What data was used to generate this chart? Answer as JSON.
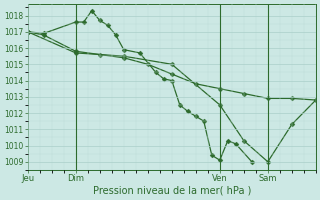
{
  "bg_color": "#cce8e4",
  "grid_major_color": "#aacfca",
  "grid_minor_color": "#bbdbd7",
  "line_color": "#2d6b2d",
  "xlabel": "Pression niveau de la mer( hPa )",
  "ylim": [
    1008.5,
    1018.7
  ],
  "yticks": [
    1009,
    1010,
    1011,
    1012,
    1013,
    1014,
    1015,
    1016,
    1017,
    1018
  ],
  "xlim": [
    0,
    72
  ],
  "xtick_positions": [
    0,
    12,
    48,
    60
  ],
  "xtick_labels": [
    "Jeu",
    "Dim",
    "Ven",
    "Sam"
  ],
  "vline_positions": [
    12,
    48,
    60
  ],
  "series1_x": [
    0,
    4,
    12,
    14,
    16,
    18,
    20,
    22,
    24,
    28,
    32,
    34,
    36,
    38,
    40,
    42,
    44,
    46,
    48,
    50,
    52,
    56
  ],
  "series1_y": [
    1017.0,
    1016.9,
    1017.6,
    1017.6,
    1018.3,
    1017.7,
    1017.4,
    1016.8,
    1015.9,
    1015.7,
    1014.5,
    1014.1,
    1014.0,
    1012.5,
    1012.1,
    1011.8,
    1011.5,
    1009.4,
    1009.1,
    1010.3,
    1010.1,
    1009.0
  ],
  "series2_x": [
    0,
    4,
    12,
    18,
    24,
    30,
    36,
    42,
    48,
    54,
    60,
    66,
    72
  ],
  "series2_y": [
    1017.0,
    1016.8,
    1015.8,
    1015.6,
    1015.4,
    1015.0,
    1014.4,
    1013.8,
    1013.5,
    1013.2,
    1012.9,
    1012.9,
    1012.8
  ],
  "series3_x": [
    0,
    12,
    24,
    36,
    48,
    54,
    60,
    66,
    72
  ],
  "series3_y": [
    1017.0,
    1015.7,
    1015.5,
    1015.0,
    1012.5,
    1010.3,
    1009.0,
    1011.3,
    1012.8
  ]
}
